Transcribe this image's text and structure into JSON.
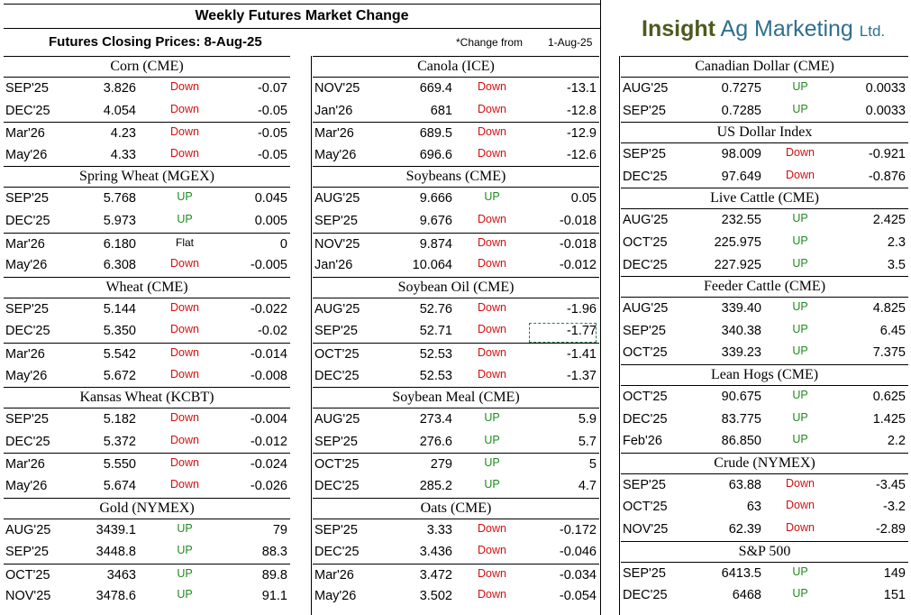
{
  "header": {
    "title": "Weekly Futures Market Change",
    "subtitle": "Futures Closing Prices:  8-Aug-25",
    "change_note": "*Change from",
    "change_date": "1-Aug-25",
    "logo_word1": "Insight",
    "logo_word2": "Ag Marketing",
    "logo_word3": "Ltd."
  },
  "colors": {
    "up": "#1f8a1f",
    "down": "#d01010",
    "logo_green": "#4d5a1e",
    "logo_blue": "#2e6f8e"
  },
  "columns": [
    {
      "sections": [
        {
          "title": "Corn (CME)",
          "rows": [
            [
              "SEP'25",
              "3.826",
              "Down",
              "-0.07"
            ],
            [
              "DEC'25",
              "4.054",
              "Down",
              "-0.05"
            ],
            [
              "Mar'26",
              "4.23",
              "Down",
              "-0.05"
            ],
            [
              "May'26",
              "4.33",
              "Down",
              "-0.05"
            ]
          ]
        },
        {
          "title": "Spring Wheat (MGEX)",
          "rows": [
            [
              "SEP'25",
              "5.768",
              "UP",
              "0.045"
            ],
            [
              "DEC'25",
              "5.973",
              "UP",
              "0.005"
            ],
            [
              "Mar'26",
              "6.180",
              "Flat",
              "0"
            ],
            [
              "May'26",
              "6.308",
              "Down",
              "-0.005"
            ]
          ]
        },
        {
          "title": "Wheat (CME)",
          "rows": [
            [
              "SEP'25",
              "5.144",
              "Down",
              "-0.022"
            ],
            [
              "DEC'25",
              "5.350",
              "Down",
              "-0.02"
            ],
            [
              "Mar'26",
              "5.542",
              "Down",
              "-0.014"
            ],
            [
              "May'26",
              "5.672",
              "Down",
              "-0.008"
            ]
          ]
        },
        {
          "title": "Kansas Wheat (KCBT)",
          "rows": [
            [
              "SEP'25",
              "5.182",
              "Down",
              "-0.004"
            ],
            [
              "DEC'25",
              "5.372",
              "Down",
              "-0.012"
            ],
            [
              "Mar'26",
              "5.550",
              "Down",
              "-0.024"
            ],
            [
              "May'26",
              "5.674",
              "Down",
              "-0.026"
            ]
          ]
        },
        {
          "title": "Gold (NYMEX)",
          "rows": [
            [
              "AUG'25",
              "3439.1",
              "UP",
              "79"
            ],
            [
              "SEP'25",
              "3448.8",
              "UP",
              "88.3"
            ],
            [
              "OCT'25",
              "3463",
              "UP",
              "89.8"
            ],
            [
              "NOV'25",
              "3478.6",
              "UP",
              "91.1"
            ]
          ]
        }
      ]
    },
    {
      "sections": [
        {
          "title": "Canola (ICE)",
          "rows": [
            [
              "NOV'25",
              "669.4",
              "Down",
              "-13.1"
            ],
            [
              "Jan'26",
              "681",
              "Down",
              "-12.8"
            ],
            [
              "Mar'26",
              "689.5",
              "Down",
              "-12.9"
            ],
            [
              "May'26",
              "696.6",
              "Down",
              "-12.6"
            ]
          ]
        },
        {
          "title": "Soybeans (CME)",
          "rows": [
            [
              "AUG'25",
              "9.666",
              "UP",
              "0.05"
            ],
            [
              "SEP'25",
              "9.676",
              "Down",
              "-0.018"
            ],
            [
              "NOV'25",
              "9.874",
              "Down",
              "-0.018"
            ],
            [
              "Jan'26",
              "10.064",
              "Down",
              "-0.012"
            ]
          ]
        },
        {
          "title": "Soybean Oil (CME)",
          "rows": [
            [
              "AUG'25",
              "52.76",
              "Down",
              "-1.96"
            ],
            [
              "SEP'25",
              "52.71",
              "Down",
              "-1.77"
            ],
            [
              "OCT'25",
              "52.53",
              "Down",
              "-1.41"
            ],
            [
              "DEC'25",
              "52.53",
              "Down",
              "-1.37"
            ]
          ]
        },
        {
          "title": "Soybean Meal (CME)",
          "rows": [
            [
              "AUG'25",
              "273.4",
              "UP",
              "5.9"
            ],
            [
              "SEP'25",
              "276.6",
              "UP",
              "5.7"
            ],
            [
              "OCT'25",
              "279",
              "UP",
              "5"
            ],
            [
              "DEC'25",
              "285.2",
              "UP",
              "4.7"
            ]
          ]
        },
        {
          "title": "Oats (CME)",
          "rows": [
            [
              "SEP'25",
              "3.33",
              "Down",
              "-0.172"
            ],
            [
              "DEC'25",
              "3.436",
              "Down",
              "-0.046"
            ],
            [
              "Mar'26",
              "3.472",
              "Down",
              "-0.034"
            ],
            [
              "May'26",
              "3.502",
              "Down",
              "-0.054"
            ]
          ]
        }
      ]
    },
    {
      "sections": [
        {
          "title": "Canadian Dollar (CME)",
          "rows": [
            [
              "AUG'25",
              "0.7275",
              "UP",
              "0.0033"
            ],
            [
              "SEP'25",
              "0.7285",
              "UP",
              "0.0033"
            ]
          ]
        },
        {
          "title": "US Dollar Index",
          "rows": [
            [
              "SEP'25",
              "98.009",
              "Down",
              "-0.921"
            ],
            [
              "DEC'25",
              "97.649",
              "Down",
              "-0.876"
            ]
          ]
        },
        {
          "title": "Live Cattle (CME)",
          "rows": [
            [
              "AUG'25",
              "232.55",
              "UP",
              "2.425"
            ],
            [
              "OCT'25",
              "225.975",
              "UP",
              "2.3"
            ],
            [
              "DEC'25",
              "227.925",
              "UP",
              "3.5"
            ]
          ]
        },
        {
          "title": "Feeder Cattle (CME)",
          "rows": [
            [
              "AUG'25",
              "339.40",
              "UP",
              "4.825"
            ],
            [
              "SEP'25",
              "340.38",
              "UP",
              "6.45"
            ],
            [
              "OCT'25",
              "339.23",
              "UP",
              "7.375"
            ]
          ]
        },
        {
          "title": "Lean Hogs (CME)",
          "rows": [
            [
              "OCT'25",
              "90.675",
              "UP",
              "0.625"
            ],
            [
              "DEC'25",
              "83.775",
              "UP",
              "1.425"
            ],
            [
              "Feb'26",
              "86.850",
              "UP",
              "2.2"
            ]
          ]
        },
        {
          "title": "Crude (NYMEX)",
          "rows": [
            [
              "SEP'25",
              "63.88",
              "Down",
              "-3.45"
            ],
            [
              "OCT'25",
              "63",
              "Down",
              "-3.2"
            ],
            [
              "NOV'25",
              "62.39",
              "Down",
              "-2.89"
            ]
          ]
        },
        {
          "title": "S&P 500",
          "rows": [
            [
              "SEP'25",
              "6413.5",
              "UP",
              "149"
            ],
            [
              "DEC'25",
              "6468",
              "UP",
              "151"
            ]
          ]
        }
      ]
    }
  ]
}
